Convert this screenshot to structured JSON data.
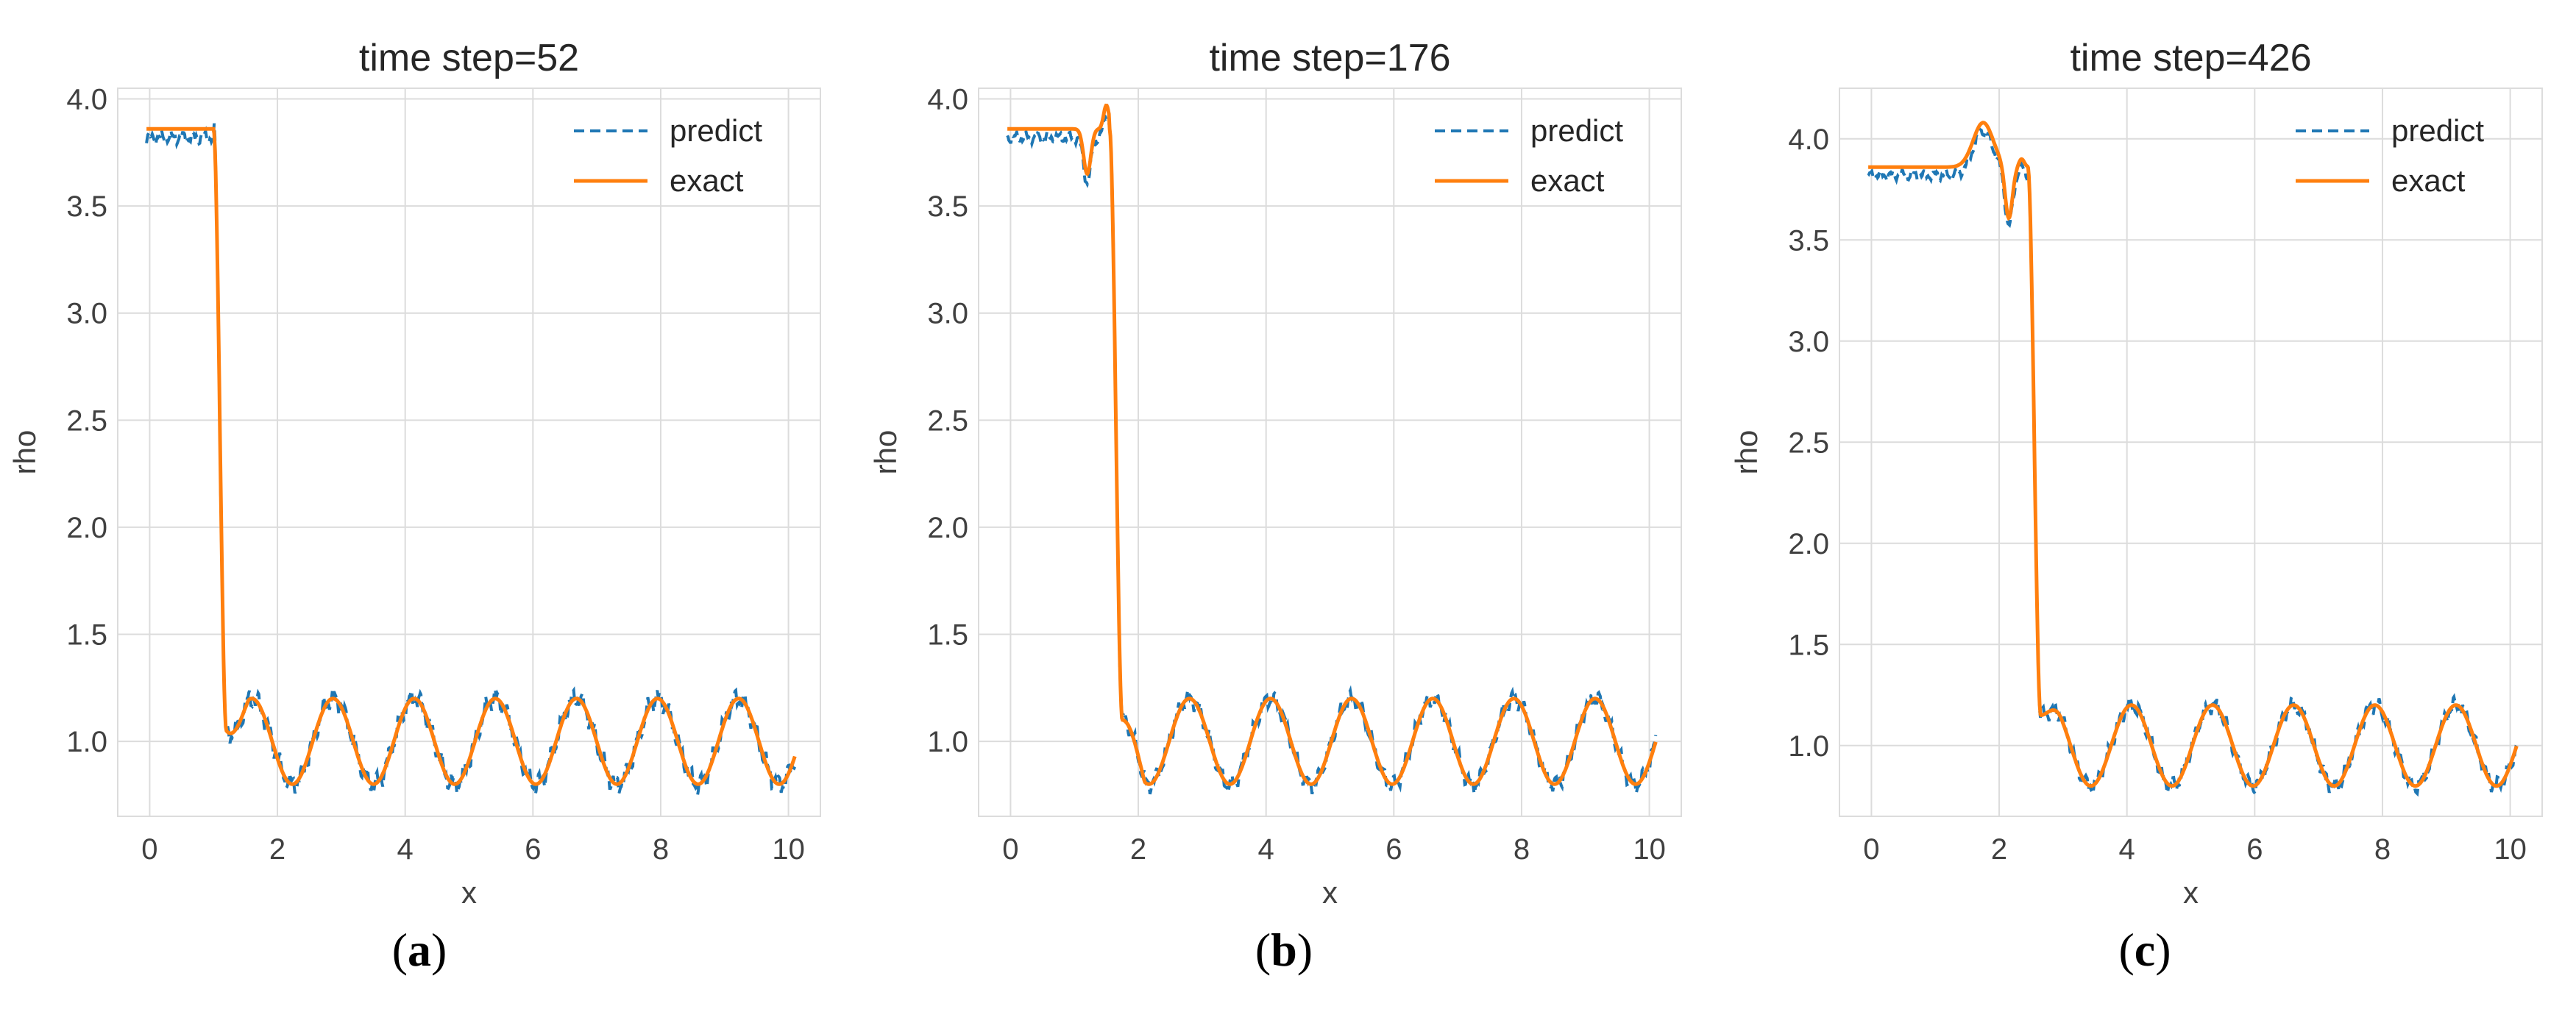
{
  "figure": {
    "panels": [
      {
        "id": "a",
        "label": "a",
        "paren_open": "(",
        "paren_close": ")"
      },
      {
        "id": "b",
        "label": "b",
        "paren_open": "(",
        "paren_close": ")"
      },
      {
        "id": "c",
        "label": "c",
        "paren_open": "(",
        "paren_close": ")"
      }
    ]
  },
  "colors": {
    "predict": "#1f77b4",
    "exact": "#ff7f0e",
    "grid": "#dcdcdc",
    "text": "#262626",
    "axes_text": "#404040"
  },
  "chart_data": [
    {
      "type": "line",
      "title": "time step=52",
      "xlabel": "x",
      "ylabel": "rho",
      "xlim": [
        -0.5,
        10.5
      ],
      "ylim": [
        0.65,
        4.05
      ],
      "xticks": [
        0,
        2,
        4,
        6,
        8,
        10
      ],
      "yticks": [
        1.0,
        1.5,
        2.0,
        2.5,
        3.0,
        3.5,
        4.0
      ],
      "ytick_labels": [
        "1.0",
        "1.5",
        "2.0",
        "2.5",
        "3.0",
        "3.5",
        "4.0"
      ],
      "xtick_labels": [
        "0",
        "2",
        "4",
        "6",
        "8",
        "10"
      ],
      "grid": true,
      "legend": {
        "position": "top-right",
        "entries": [
          "predict",
          "exact"
        ]
      },
      "shock": {
        "left_level": 3.86,
        "x_start": 1.0,
        "x_end": 1.2,
        "post_level": 1.05
      },
      "wave": {
        "mean": 1.0,
        "amplitude": 0.2,
        "period": 1.27,
        "x_first_peak": 1.6
      },
      "predict_noise": 0.06,
      "series": [
        {
          "name": "predict",
          "style": "dashed"
        },
        {
          "name": "exact",
          "style": "solid"
        }
      ]
    },
    {
      "type": "line",
      "title": "time step=176",
      "xlabel": "x",
      "ylabel": "rho",
      "xlim": [
        -0.5,
        10.5
      ],
      "ylim": [
        0.65,
        4.05
      ],
      "xticks": [
        0,
        2,
        4,
        6,
        8,
        10
      ],
      "yticks": [
        1.0,
        1.5,
        2.0,
        2.5,
        3.0,
        3.5,
        4.0
      ],
      "ytick_labels": [
        "1.0",
        "1.5",
        "2.0",
        "2.5",
        "3.0",
        "3.5",
        "4.0"
      ],
      "xtick_labels": [
        "0",
        "2",
        "4",
        "6",
        "8",
        "10"
      ],
      "grid": true,
      "legend": {
        "position": "top-right",
        "entries": [
          "predict",
          "exact"
        ]
      },
      "shock": {
        "left_level": 3.86,
        "x_start": 1.55,
        "x_end": 1.75,
        "post_level": 1.1,
        "dip_x": 1.2,
        "dip_value": 3.65,
        "spike_x": 1.5,
        "spike_value": 3.97
      },
      "wave": {
        "mean": 1.0,
        "amplitude": 0.2,
        "period": 1.27,
        "x_first_peak": 2.8
      },
      "predict_noise": 0.05,
      "series": [
        {
          "name": "predict",
          "style": "dashed"
        },
        {
          "name": "exact",
          "style": "solid"
        }
      ]
    },
    {
      "type": "line",
      "title": "time step=426",
      "xlabel": "x",
      "ylabel": "rho",
      "xlim": [
        -0.5,
        10.5
      ],
      "ylim": [
        0.65,
        4.25
      ],
      "xticks": [
        0,
        2,
        4,
        6,
        8,
        10
      ],
      "yticks": [
        1.0,
        1.5,
        2.0,
        2.5,
        3.0,
        3.5,
        4.0
      ],
      "ytick_labels": [
        "1.0",
        "1.5",
        "2.0",
        "2.5",
        "3.0",
        "3.5",
        "4.0"
      ],
      "xtick_labels": [
        "0",
        "2",
        "4",
        "6",
        "8",
        "10"
      ],
      "grid": true,
      "legend": {
        "position": "top-right",
        "entries": [
          "predict",
          "exact"
        ]
      },
      "shock": {
        "left_level": 3.86,
        "x_start": 2.45,
        "x_end": 2.65,
        "post_level": 1.15,
        "peak1_x": 1.75,
        "peak1_value": 4.08,
        "dip_x": 2.15,
        "dip_value": 3.6,
        "peak2_x": 2.35,
        "peak2_value": 3.9
      },
      "wave": {
        "mean": 1.0,
        "amplitude": 0.2,
        "period": 1.27,
        "x_first_peak": 2.8
      },
      "predict_noise": 0.05,
      "series": [
        {
          "name": "predict",
          "style": "dashed"
        },
        {
          "name": "exact",
          "style": "solid"
        }
      ]
    }
  ]
}
